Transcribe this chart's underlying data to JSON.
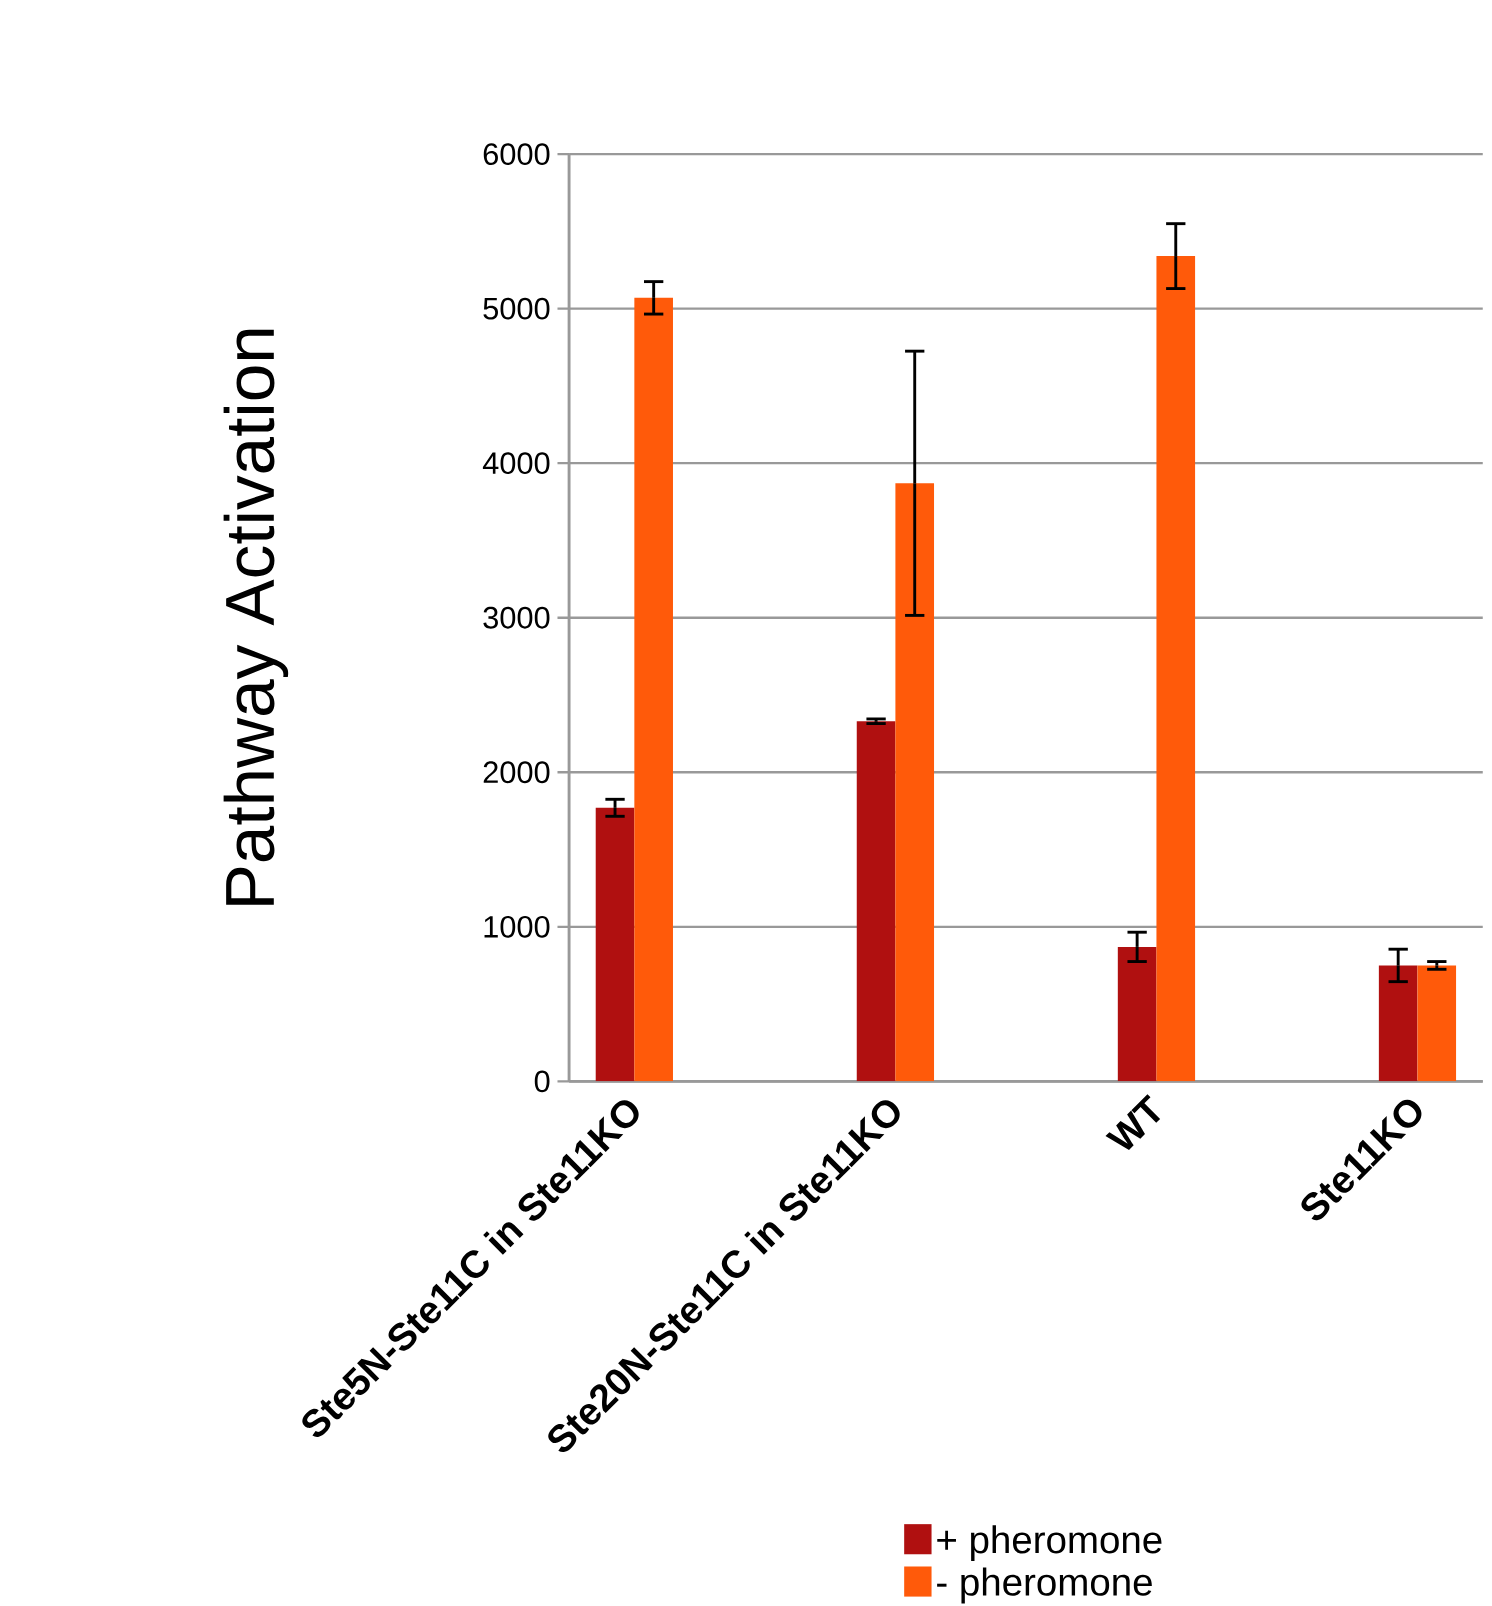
{
  "chart_data": {
    "type": "bar",
    "ylabel": "Pathway Activation",
    "categories": [
      "Ste5N-Ste11C in Ste11KO",
      "Ste20N-Ste11C in Ste11KO",
      "WT",
      "Ste11KO"
    ],
    "series": [
      {
        "name": "+ pheromone",
        "color": "#b01010",
        "values": [
          1770,
          2330,
          870,
          750
        ],
        "errors": [
          55,
          15,
          95,
          105
        ]
      },
      {
        "name": "- pheromone",
        "color": "#ff5a0a",
        "values": [
          5070,
          3870,
          5340,
          750
        ],
        "errors": [
          105,
          855,
          210,
          25
        ]
      }
    ],
    "ylim": [
      0,
      6000
    ],
    "yticks": [
      0,
      1000,
      2000,
      3000,
      4000,
      5000,
      6000
    ],
    "grid": "y",
    "legend": "bottom right"
  }
}
